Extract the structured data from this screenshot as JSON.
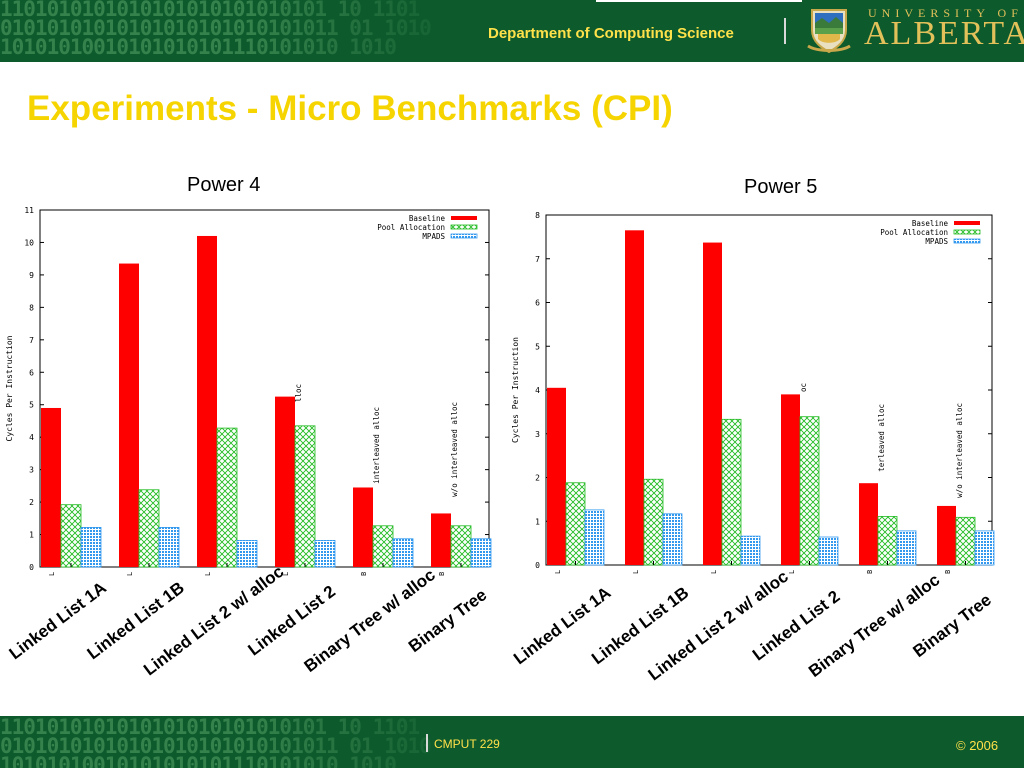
{
  "header": {
    "department": "Department of Computing Science",
    "university_top": "UNIVERSITY OF",
    "university_name": "ALBERTA",
    "binary_rows": [
      "1101010101010101010101010101 10 1101",
      "01010101010101010101010101011 01 1010",
      "10101010010101010101110101010 1010"
    ]
  },
  "slide": {
    "title": "Experiments - Micro Benchmarks (CPI)"
  },
  "footer": {
    "course": "CMPUT 229",
    "copyright": "© 2006"
  },
  "colors": {
    "baseline": "#ff0000",
    "pool": "#22bb22",
    "mpads": "#3399ee",
    "title": "#f5d400",
    "header_bg": "#0d5a2c"
  },
  "chart_data": [
    {
      "type": "bar",
      "title": "Power 4",
      "ylabel": "Cycles Per Instruction",
      "ylim": [
        0,
        11
      ],
      "yticks": [
        0,
        1,
        2,
        3,
        4,
        5,
        6,
        7,
        8,
        9,
        10,
        11
      ],
      "categories": [
        "Linked List 1A",
        "Linked List 1B",
        "Linked List 2 w/ alloc",
        "Linked List 2",
        "Binary Tree w/ alloc",
        "Binary Tree"
      ],
      "tick_labels": [
        "L",
        "L",
        "L",
        "L",
        "B",
        "B"
      ],
      "bar_annotations": [
        "",
        "",
        "",
        "lloc",
        "interleaved alloc",
        "w/o interleaved alloc"
      ],
      "series": [
        {
          "name": "Baseline",
          "values": [
            4.9,
            9.35,
            10.2,
            5.25,
            2.45,
            1.65
          ]
        },
        {
          "name": "Pool Allocation",
          "values": [
            1.92,
            2.38,
            4.28,
            4.35,
            1.27,
            1.27
          ]
        },
        {
          "name": "MPADS",
          "values": [
            1.22,
            1.22,
            0.82,
            0.82,
            0.87,
            0.87
          ]
        }
      ],
      "legend": "top-right",
      "grid": false
    },
    {
      "type": "bar",
      "title": "Power 5",
      "ylabel": "Cycles Per Instruction",
      "ylim": [
        0,
        8
      ],
      "yticks": [
        0,
        1,
        2,
        3,
        4,
        5,
        6,
        7,
        8
      ],
      "categories": [
        "Linked List 1A",
        "Linked List 1B",
        "Linked List 2 w/ alloc",
        "Linked List 2",
        "Binary Tree w/ alloc",
        "Binary Tree"
      ],
      "tick_labels": [
        "L",
        "L",
        "L",
        "L",
        "B",
        "B"
      ],
      "bar_annotations": [
        "",
        "",
        "",
        "oc",
        "terleaved alloc",
        "w/o interleaved alloc"
      ],
      "series": [
        {
          "name": "Baseline",
          "values": [
            4.05,
            7.65,
            7.37,
            3.9,
            1.87,
            1.35
          ]
        },
        {
          "name": "Pool Allocation",
          "values": [
            1.88,
            1.96,
            3.33,
            3.39,
            1.11,
            1.09
          ]
        },
        {
          "name": "MPADS",
          "values": [
            1.26,
            1.17,
            0.66,
            0.64,
            0.78,
            0.78
          ]
        }
      ],
      "legend": "top-right",
      "grid": false
    }
  ]
}
